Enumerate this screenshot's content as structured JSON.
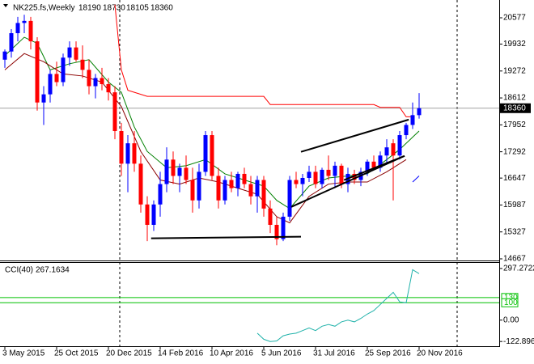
{
  "chart_data": {
    "type": "candlestick",
    "title": "NK225.fs,Weekly",
    "categories": [
      "3 May 2015",
      null,
      null,
      null,
      null,
      null,
      null,
      null,
      "25 Oct 2015",
      null,
      null,
      null,
      null,
      null,
      null,
      null,
      "20 Dec 2015",
      null,
      null,
      null,
      null,
      null,
      null,
      null,
      "14 Feb 2016",
      null,
      null,
      null,
      null,
      null,
      null,
      null,
      "10 Apr 2016",
      null,
      null,
      null,
      null,
      null,
      null,
      null,
      "5 Jun 2016",
      null,
      null,
      null,
      null,
      null,
      null,
      null,
      "31 Jul 2016",
      null,
      null,
      null,
      null,
      null,
      null,
      null,
      "25 Sep 2016",
      null,
      null,
      null,
      null,
      null,
      null,
      null,
      "20 Nov 2016"
    ],
    "open": [
      19550,
      19750,
      20200,
      20450,
      20500,
      20000,
      18500,
      18700,
      19200,
      19000,
      19600,
      19850,
      19550,
      19300,
      18900,
      19100,
      18950,
      18750,
      17800,
      17000,
      17500,
      17000,
      16000,
      15500,
      16000,
      16500,
      17100,
      16700,
      16900,
      16600,
      16100,
      16800,
      17700,
      16700,
      16100,
      16600,
      16400,
      16750,
      16500,
      16200,
      16600,
      15900,
      15500,
      15150,
      15700,
      16600,
      16500,
      16650,
      16800,
      16500,
      16850,
      16700,
      16950,
      16500,
      16750,
      16600,
      16800,
      17050,
      16900,
      17200,
      17500,
      17200,
      17700,
      17950,
      18190
    ],
    "high": [
      19800,
      20300,
      20600,
      20650,
      20600,
      20100,
      18900,
      19300,
      19500,
      19700,
      20000,
      20000,
      19900,
      19550,
      19200,
      19350,
      19100,
      18900,
      18000,
      17700,
      17800,
      17200,
      16200,
      16100,
      16800,
      17400,
      17300,
      17000,
      17200,
      16900,
      17000,
      17800,
      17800,
      16900,
      16700,
      16800,
      16800,
      16900,
      16700,
      16700,
      16700,
      16100,
      15700,
      15800,
      16700,
      16800,
      16750,
      16950,
      16950,
      16900,
      17200,
      17050,
      17000,
      16900,
      16850,
      16900,
      17100,
      17200,
      17300,
      17600,
      17600,
      17800,
      18000,
      18500,
      18730
    ],
    "low": [
      19350,
      19600,
      20000,
      20200,
      19800,
      18300,
      17950,
      18500,
      18900,
      18900,
      19400,
      19500,
      19100,
      18700,
      18600,
      18800,
      18550,
      17600,
      16700,
      16300,
      16800,
      15800,
      15100,
      15350,
      15700,
      16300,
      16500,
      16300,
      16500,
      15800,
      15900,
      16700,
      16600,
      15900,
      16000,
      16300,
      16200,
      16400,
      16000,
      15800,
      15700,
      15300,
      15000,
      15100,
      15600,
      16400,
      16200,
      16550,
      16400,
      16400,
      16600,
      16400,
      16400,
      16300,
      16500,
      16450,
      16700,
      16850,
      16800,
      17000,
      16100,
      17100,
      17600,
      17850,
      18105
    ],
    "close": [
      19750,
      20200,
      20450,
      20500,
      20000,
      18500,
      18700,
      19200,
      19000,
      19600,
      19850,
      19550,
      19300,
      18900,
      19100,
      18950,
      18750,
      17800,
      17000,
      17500,
      17000,
      16000,
      15500,
      16000,
      16500,
      17100,
      16700,
      16900,
      16600,
      16100,
      16800,
      17700,
      16700,
      16100,
      16600,
      16400,
      16750,
      16500,
      16200,
      16600,
      15900,
      15500,
      15150,
      15700,
      16600,
      16500,
      16650,
      16800,
      16500,
      16850,
      16700,
      16950,
      16500,
      16750,
      16600,
      16800,
      17050,
      16900,
      17200,
      17400,
      17200,
      17700,
      17950,
      18190,
      18360
    ],
    "up_color": "#0000ff",
    "down_color": "#ff0000",
    "ylim": [
      14627,
      21013
    ],
    "yticks": [
      20577,
      19932,
      19272,
      18612,
      17952,
      17292,
      16647,
      15987,
      15327,
      14667
    ],
    "overlays": [
      {
        "color": "#008000",
        "x": [
          0,
          3,
          5,
          7,
          10,
          13,
          16,
          18,
          20,
          22,
          25,
          28,
          31,
          34,
          37,
          40,
          42,
          44,
          47,
          50,
          53,
          56,
          59,
          61,
          64
        ],
        "values": [
          19650,
          20100,
          19950,
          19300,
          19450,
          19550,
          19000,
          18750,
          17900,
          17300,
          16900,
          16950,
          17100,
          16750,
          16600,
          16450,
          16100,
          15900,
          16450,
          16650,
          16700,
          16750,
          17100,
          17350,
          17800
        ]
      },
      {
        "color": "#8b0000",
        "x": [
          0,
          3,
          6,
          9,
          12,
          15,
          18,
          21,
          24,
          27,
          30,
          33,
          36,
          39,
          42,
          44,
          47,
          50,
          53,
          56,
          59,
          62
        ],
        "values": [
          19300,
          19700,
          19500,
          19200,
          19150,
          19000,
          18400,
          17300,
          16600,
          16500,
          16650,
          16550,
          16400,
          16250,
          15700,
          15550,
          16200,
          16500,
          16550,
          16550,
          16800,
          17100
        ]
      },
      {
        "color": "#ff0000",
        "x": [
          17,
          18,
          19,
          20,
          22,
          40,
          41,
          57,
          58,
          61,
          62,
          63
        ],
        "values": [
          20900,
          19300,
          18800,
          18750,
          18650,
          18650,
          18450,
          18450,
          18380,
          18380,
          18150,
          18150
        ]
      },
      {
        "color": "#0000ff",
        "x": [
          63,
          64
        ],
        "values": [
          16550,
          16700
        ]
      }
    ],
    "trendlines": [
      {
        "x": [
          22.6,
          45.75
        ],
        "values": [
          15170,
          15210
        ]
      },
      {
        "x": [
          45.75,
          62.4
        ],
        "values": [
          17290,
          18080
        ]
      },
      {
        "x": [
          44.25,
          61.75
        ],
        "values": [
          15940,
          17190
        ]
      },
      {
        "x": [
          52.4,
          61.75
        ],
        "values": [
          16600,
          17190
        ]
      }
    ],
    "indicator": {
      "type": "line",
      "name": "CCI(40)",
      "color": "#20b2aa",
      "x": [
        39,
        40,
        41,
        42,
        43,
        44,
        45,
        46,
        47,
        48,
        49,
        50,
        51,
        52,
        53,
        54,
        55,
        56,
        57,
        58,
        59,
        60,
        61,
        62,
        63,
        64
      ],
      "values": [
        -75,
        -110,
        -123,
        -120,
        -90,
        -80,
        -75,
        -60,
        -45,
        -60,
        -35,
        -25,
        -35,
        -10,
        0,
        -10,
        10,
        35,
        55,
        90,
        125,
        160,
        105,
        100,
        290,
        267.1634
      ],
      "ylim": [
        -150,
        334
      ],
      "yticks": [
        297.2722,
        {
          "value": 0,
          "label": "0.00"
        },
        -122.896
      ],
      "levels": [
        130,
        100
      ],
      "level_color": "#00c000"
    }
  }
}
